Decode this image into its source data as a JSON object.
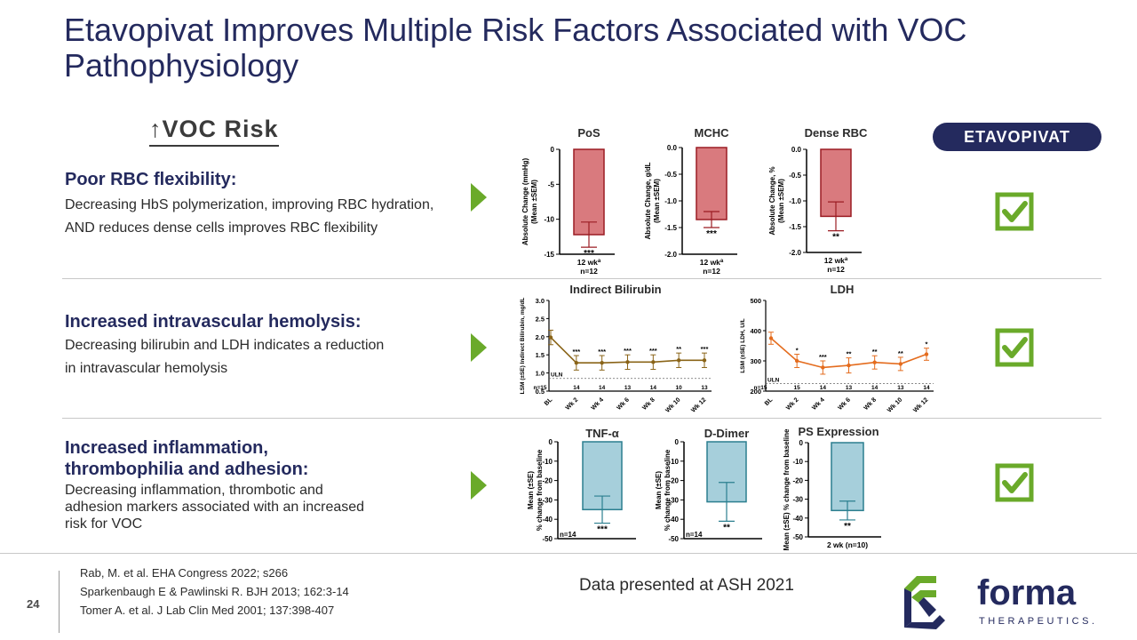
{
  "title": "Etavopivat Improves Multiple Risk Factors Associated with VOC Pathophysiology",
  "voc_risk": {
    "arrow": "↑",
    "label": "VOC Risk"
  },
  "badge": "ETAVOPIVAT",
  "rows": [
    {
      "heading": "Poor RBC flexibility:",
      "text": "Decreasing HbS polymerization, improving RBC hydration, AND reduces dense cells improves RBC flexibility"
    },
    {
      "heading": "Increased intravascular hemolysis:",
      "text": "Decreasing bilirubin and LDH indicates a reduction in intravascular hemolysis"
    },
    {
      "heading": "Increased inflammation, thrombophilia and adhesion:",
      "text": "Decreasing inflammation, thrombotic and adhesion markers associated with an increased risk for VOC"
    }
  ],
  "colors": {
    "navy": "#242a5e",
    "green": "#6aaa2a",
    "red_fill": "#d97a7e",
    "red_line": "#9b1c23",
    "brown": "#8a6418",
    "orange": "#e46c1e",
    "teal_fill": "#a6cfdb",
    "teal_line": "#2b7f8f"
  },
  "footer": {
    "page": "24",
    "refs": [
      "Rab, M. et al. EHA Congress 2022; s266",
      "Sparkenbaugh E & Pawlinski R. BJH 2013; 162:3-14",
      "Tomer A. et al. J Lab Clin Med 2001; 137:398-407"
    ],
    "ash": "Data presented at ASH 2021",
    "logo_name": "forma",
    "logo_sub": "THERAPEUTICS."
  },
  "chart_data": [
    {
      "type": "bar",
      "title": "PoS",
      "ylabel": "Absolute Change (mmHg)\n(Mean ±SEM)",
      "ylim": [
        -15,
        0
      ],
      "ticks": [
        "0",
        "-5",
        "-10",
        "-15"
      ],
      "tickvals": [
        0,
        -5,
        -10,
        -15
      ],
      "categories": [
        "12 wk"
      ],
      "cat_sup": "a",
      "n": "n=12",
      "values": [
        -12.2
      ],
      "err": [
        1.8
      ],
      "sig": "***"
    },
    {
      "type": "bar",
      "title": "MCHC",
      "ylabel": "Absolute Change, g/dL\n(Mean ±SEM)",
      "ylim": [
        -2.0,
        0
      ],
      "ticks": [
        "0.0",
        "-0.5",
        "-1.0",
        "-1.5",
        "-2.0"
      ],
      "tickvals": [
        0,
        -0.5,
        -1.0,
        -1.5,
        -2.0
      ],
      "categories": [
        "12 wk"
      ],
      "cat_sup": "a",
      "n": "n=12",
      "values": [
        -1.35
      ],
      "err": [
        0.15
      ],
      "sig": "***"
    },
    {
      "type": "bar",
      "title": "Dense RBC",
      "ylabel": "Absolute Change, %\n(Mean ±SEM)",
      "ylim": [
        -2.0,
        0
      ],
      "ticks": [
        "0.0",
        "-0.5",
        "-1.0",
        "-1.5",
        "-2.0"
      ],
      "tickvals": [
        0,
        -0.5,
        -1.0,
        -1.5,
        -2.0
      ],
      "categories": [
        "12 wk"
      ],
      "cat_sup": "a",
      "n": "n=12",
      "values": [
        -1.3
      ],
      "err": [
        0.28
      ],
      "sig": "**"
    },
    {
      "type": "line",
      "title": "Indirect Bilirubin",
      "ylabel": "LSM (±SE) Indirect Bilirubin, mg/dL",
      "ylim": [
        0.5,
        3.0
      ],
      "ticks": [
        "3.0",
        "2.5",
        "2.0",
        "1.5",
        "1.0",
        "0.5"
      ],
      "tickvals": [
        3.0,
        2.5,
        2.0,
        1.5,
        1.0,
        0.5
      ],
      "x": [
        "BL",
        "Wk 2",
        "Wk 4",
        "Wk 6",
        "Wk 8",
        "Wk 10",
        "Wk 12"
      ],
      "values": [
        1.98,
        1.28,
        1.28,
        1.3,
        1.3,
        1.35,
        1.35
      ],
      "err": [
        0.2,
        0.2,
        0.2,
        0.2,
        0.2,
        0.2,
        0.2
      ],
      "sig": [
        "",
        "***",
        "***",
        "***",
        "***",
        "**",
        "***"
      ],
      "n_label": "n=",
      "n": [
        "15",
        "14",
        "14",
        "13",
        "14",
        "10",
        "13"
      ],
      "uln": 0.85,
      "uln_label": "ULN"
    },
    {
      "type": "line",
      "title": "LDH",
      "ylabel": "LSM (±SE) LDH, U/L",
      "ylim": [
        200,
        500
      ],
      "ticks": [
        "500",
        "400",
        "300",
        "200"
      ],
      "tickvals": [
        500,
        400,
        300,
        200
      ],
      "x": [
        "BL",
        "Wk 2",
        "Wk 4",
        "Wk 6",
        "Wk 8",
        "Wk 10",
        "Wk 12"
      ],
      "values": [
        375,
        300,
        278,
        285,
        295,
        290,
        322
      ],
      "err": [
        20,
        22,
        22,
        25,
        22,
        22,
        20
      ],
      "sig": [
        "",
        "*",
        "***",
        "**",
        "**",
        "**",
        "*"
      ],
      "n_label": "n=",
      "n": [
        "15",
        "15",
        "14",
        "13",
        "14",
        "13",
        "14"
      ],
      "uln": 225,
      "uln_label": "ULN"
    },
    {
      "type": "bar",
      "title": "TNF-α",
      "ylabel": "Mean (±SE)\n% change from baseline",
      "ylim": [
        -50,
        0
      ],
      "ticks": [
        "0",
        "-10",
        "-20",
        "-30",
        "-40",
        "-50"
      ],
      "tickvals": [
        0,
        -10,
        -20,
        -30,
        -40,
        -50
      ],
      "categories": [
        ""
      ],
      "n": "n=14",
      "values": [
        -35
      ],
      "err": [
        7
      ],
      "sig": "***"
    },
    {
      "type": "bar",
      "title": "D-Dimer",
      "ylabel": "Mean (±SE)\n% change from baseline",
      "ylim": [
        -50,
        0
      ],
      "ticks": [
        "0",
        "-10",
        "-20",
        "-30",
        "-40",
        "-50"
      ],
      "tickvals": [
        0,
        -10,
        -20,
        -30,
        -40,
        -50
      ],
      "categories": [
        ""
      ],
      "n": "n=14",
      "values": [
        -31
      ],
      "err": [
        10
      ],
      "sig": "**"
    },
    {
      "type": "bar",
      "title": "PS Expression",
      "ylabel": "Mean (±SE) % change from baseline",
      "ylim": [
        -50,
        0
      ],
      "ticks": [
        "0",
        "-10",
        "-20",
        "-30",
        "-40",
        "-50"
      ],
      "tickvals": [
        0,
        -10,
        -20,
        -30,
        -40,
        -50
      ],
      "categories": [
        "2 wk (n=10)"
      ],
      "n": "",
      "values": [
        -36
      ],
      "err": [
        5
      ],
      "sig": "**"
    }
  ]
}
